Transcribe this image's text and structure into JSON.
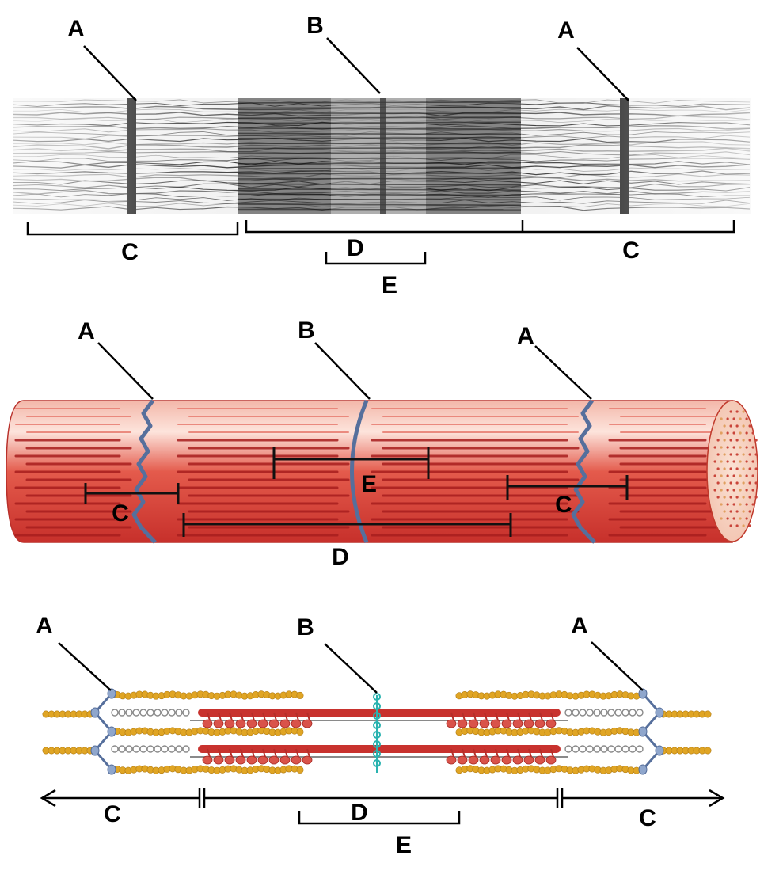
{
  "panels": {
    "micrograph": {
      "labels": {
        "z_left": "A",
        "m_line": "B",
        "z_right": "A",
        "i_left": "C",
        "a_band": "D",
        "h_zone": "E",
        "i_right": "C"
      }
    },
    "cylinder": {
      "labels": {
        "z_left": "A",
        "m_line": "B",
        "z_right": "A",
        "i_left": "C",
        "h_zone": "E",
        "i_right": "C",
        "a_band": "D"
      }
    },
    "filaments": {
      "labels": {
        "z_left": "A",
        "m_line": "B",
        "z_right": "A",
        "i_left": "C",
        "a_band": "D",
        "i_right": "C",
        "h_zone": "E"
      }
    }
  },
  "colors": {
    "ink": "#000000",
    "muscle_red": "#d8463a",
    "muscle_dark": "#a81e1e",
    "muscle_light": "#f6c4b8",
    "z_disc_blue": "#566f9c",
    "actin_gold": "#e0a524",
    "myosin_red": "#c8322e",
    "titin_gray": "#8a8a8a",
    "m_line_teal": "#2ab3b0",
    "micrograph_dark": "#1c1c1c"
  }
}
